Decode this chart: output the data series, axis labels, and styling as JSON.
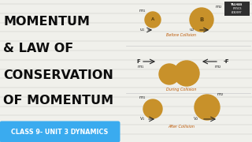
{
  "bg_color": "#f0f0eb",
  "title_lines": [
    "MOMENTUM",
    "& LAW OF",
    "CONSERVATION",
    "OF MOMENTUM"
  ],
  "title_color": "#0d0d0d",
  "title_fontsize": 11.5,
  "banner_color": "#3aabef",
  "banner_text": "CLASS 9- UNIT 3 DYNAMICS",
  "banner_text_color": "#ffffff",
  "banner_fontsize": 5.8,
  "ball_color": "#c8912a",
  "label_color": "#222222",
  "arrow_color": "#222222",
  "collision_label_color": "#bb5500",
  "line_color": "#cccccc",
  "logo_bg": "#1a1a1a"
}
